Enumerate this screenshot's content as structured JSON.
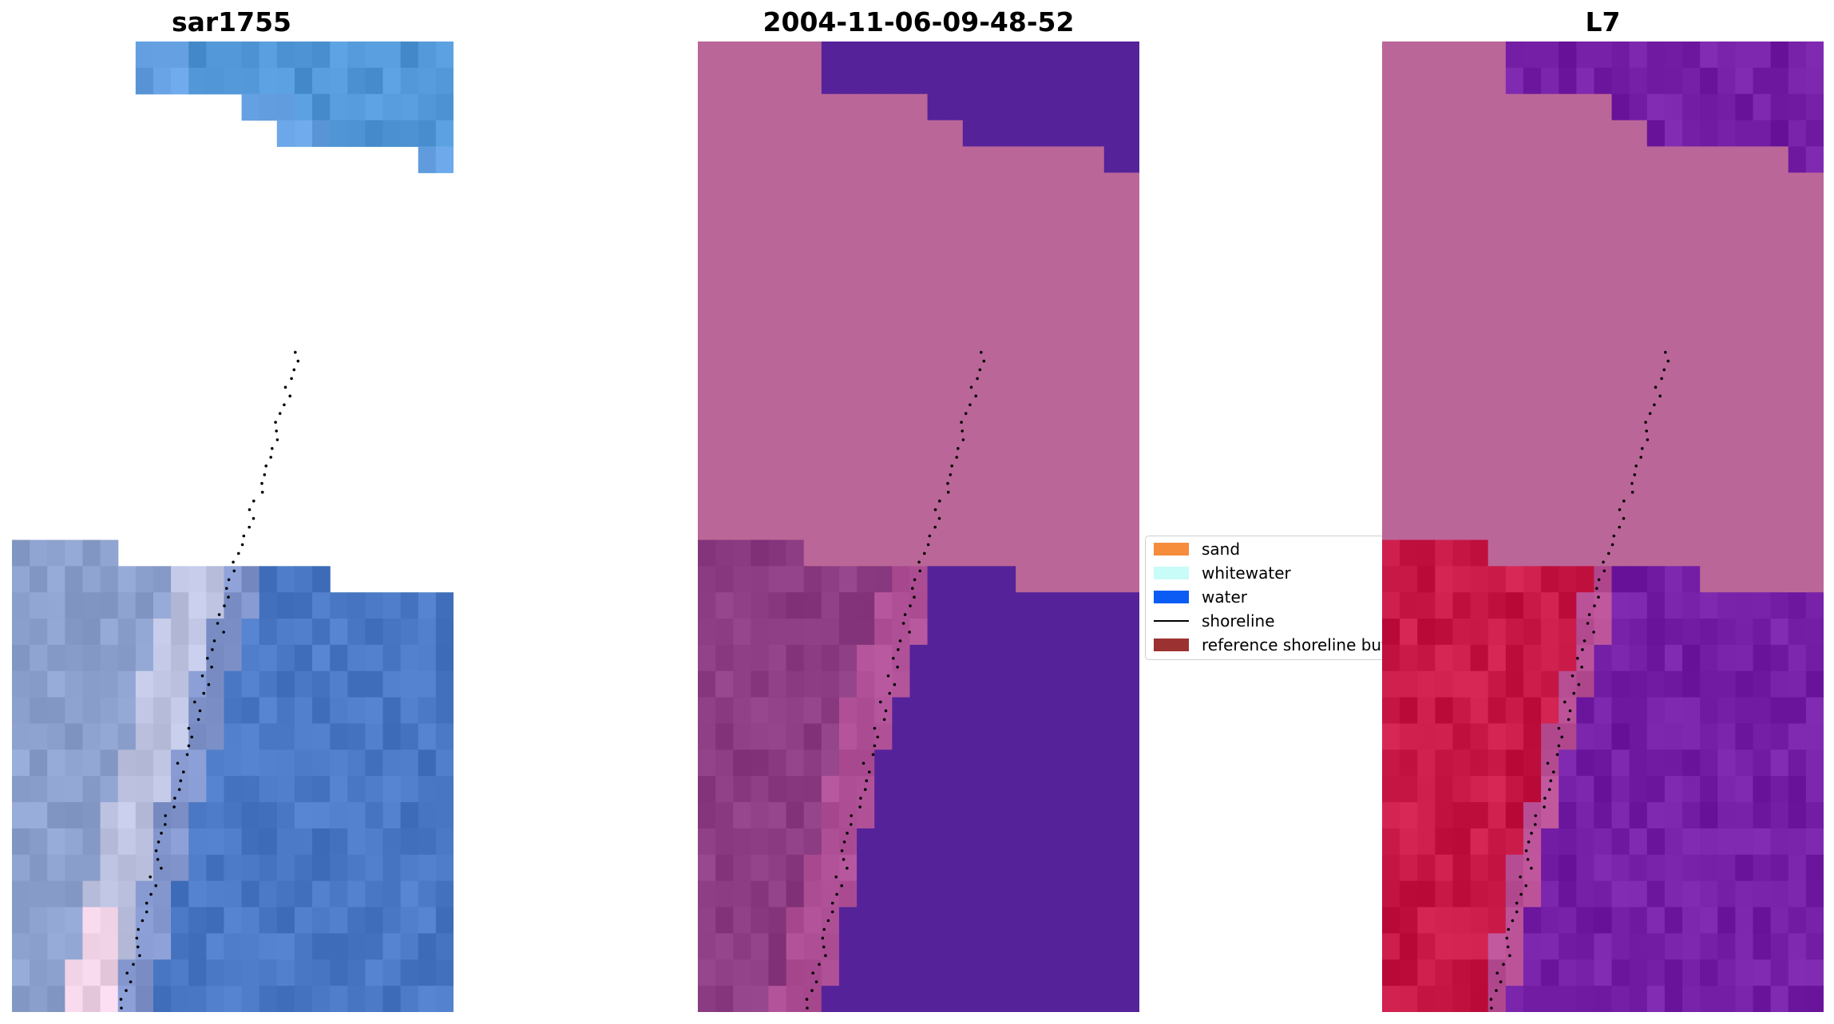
{
  "panels": [
    {
      "title": "sar1755",
      "image_description": "RGB satellite image tile, blue water on right, pale sand on left"
    },
    {
      "title": "2004-11-06-09-48-52",
      "image_description": "classified image: magenta land, purple water"
    },
    {
      "title": "L7",
      "image_description": "index image: crimson land, violet water"
    }
  ],
  "legend": {
    "items": [
      {
        "label": "sand",
        "color": "#f58d3d",
        "kind": "patch"
      },
      {
        "label": "whitewater",
        "color": "#c8fcf8",
        "kind": "patch"
      },
      {
        "label": "water",
        "color": "#0a5cf5",
        "kind": "patch"
      },
      {
        "label": "shoreline",
        "color": "#000000",
        "kind": "line"
      },
      {
        "label": "reference shoreline buffer",
        "color": "#9c3131",
        "kind": "patch"
      }
    ]
  },
  "colors": {
    "nodata_pink": "#bb6698",
    "class_water_purple": "#55229a",
    "shoreline_dots": "#000000"
  }
}
